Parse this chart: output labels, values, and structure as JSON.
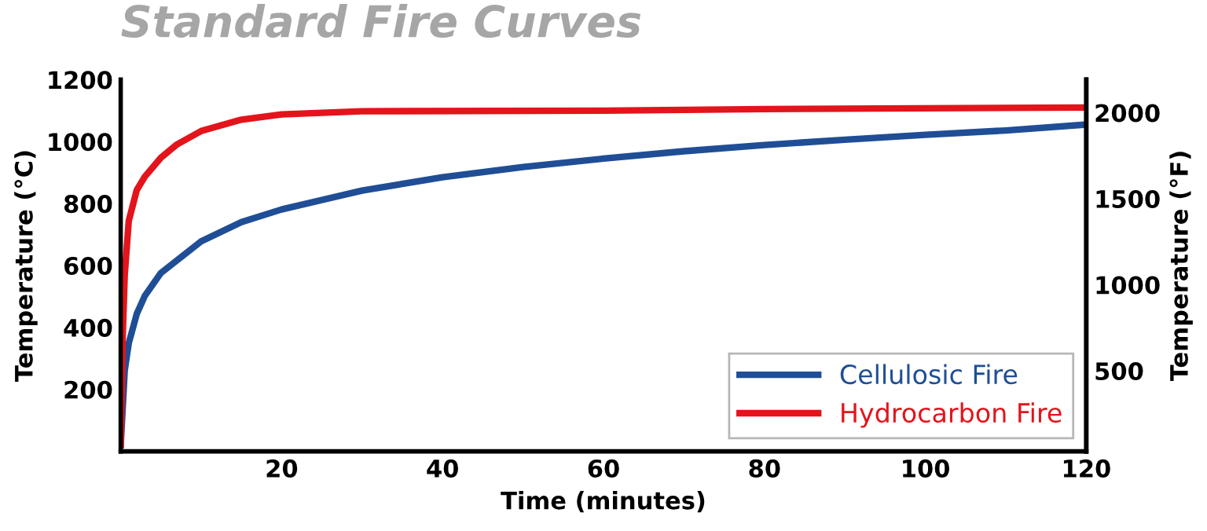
{
  "chart_data": {
    "type": "line",
    "title": "Standard Fire Curves",
    "xlabel": "Time (minutes)",
    "ylabel": "Temperature (°C)",
    "y2label": "Temperature (°F)",
    "series": [
      {
        "name": "Cellulosic Fire",
        "color": "#1f4e96",
        "x": [
          0,
          0.5,
          1,
          2,
          3,
          5,
          10,
          15,
          20,
          30,
          40,
          50,
          60,
          70,
          80,
          90,
          100,
          110,
          120
        ],
        "values": [
          20,
          261,
          349,
          444,
          502,
          576,
          678,
          740,
          781,
          842,
          885,
          918,
          945,
          969,
          989,
          1006,
          1022,
          1036,
          1055
        ]
      },
      {
        "name": "Hydrocarbon Fire",
        "color": "#e3141b",
        "x": [
          0,
          0.25,
          0.5,
          1,
          2,
          3,
          5,
          7,
          10,
          15,
          20,
          30,
          60,
          80,
          120
        ],
        "values": [
          20,
          373,
          569,
          744,
          844,
          887,
          948,
          991,
          1034,
          1071,
          1088,
          1098,
          1100,
          1105,
          1110
        ]
      }
    ],
    "xlim": [
      0,
      120
    ],
    "xticks": [
      20,
      40,
      60,
      80,
      100,
      120
    ],
    "ylim": [
      0,
      1200
    ],
    "yticks": [
      200,
      400,
      600,
      800,
      1000,
      1200
    ],
    "y2lim": [
      32,
      2192
    ],
    "y2ticks": [
      500,
      1000,
      1500,
      2000
    ],
    "grid": false,
    "legend": "bottom right",
    "marker": "none",
    "line_style": "solid"
  }
}
